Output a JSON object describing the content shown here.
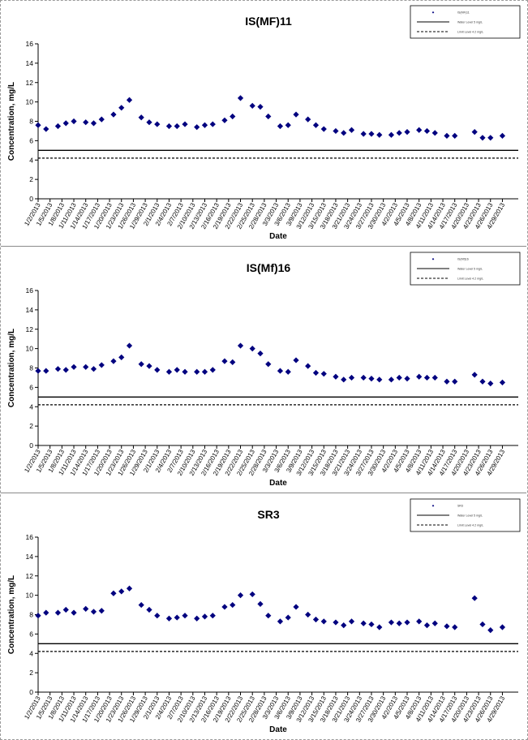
{
  "chart_data": [
    {
      "type": "scatter",
      "title": "IS(MF)11",
      "xlabel": "Date",
      "ylabel": "Concentration, mg/L",
      "ylim": [
        0,
        16
      ],
      "yticks": [
        "0",
        "2",
        "4",
        "6",
        "8",
        "10",
        "12",
        "14",
        "16"
      ],
      "grid": false,
      "legend_placement": "top-right",
      "xtick_labels": [
        "1/2/2013",
        "1/5/2013",
        "1/8/2013",
        "1/11/2013",
        "1/14/2013",
        "1/17/2013",
        "1/20/2013",
        "1/23/2013",
        "1/26/2013",
        "1/29/2013",
        "2/1/2013",
        "2/4/2013",
        "2/7/2013",
        "2/10/2013",
        "2/13/2013",
        "2/16/2013",
        "2/19/2013",
        "2/22/2013",
        "2/25/2013",
        "2/28/2013",
        "3/3/2013",
        "3/6/2013",
        "3/9/2013",
        "3/12/2013",
        "3/15/2013",
        "3/18/2013",
        "3/21/2013",
        "3/24/2013",
        "3/27/2013",
        "3/30/2013",
        "4/2/2013",
        "4/5/2013",
        "4/8/2013",
        "4/11/2013",
        "4/14/2013",
        "4/17/2013",
        "4/20/2013",
        "4/23/2013",
        "4/26/2013",
        "4/29/2013"
      ],
      "series": [
        {
          "name": "IS(MF)11",
          "marker": "diamond",
          "color": "#00007f",
          "x": [
            "1/2/2013",
            "1/4/2013",
            "1/7/2013",
            "1/9/2013",
            "1/11/2013",
            "1/14/2013",
            "1/16/2013",
            "1/18/2013",
            "1/21/2013",
            "1/23/2013",
            "1/25/2013",
            "1/28/2013",
            "1/30/2013",
            "2/1/2013",
            "2/4/2013",
            "2/6/2013",
            "2/8/2013",
            "2/11/2013",
            "2/13/2013",
            "2/15/2013",
            "2/18/2013",
            "2/20/2013",
            "2/22/2013",
            "2/25/2013",
            "2/27/2013",
            "3/1/2013",
            "3/4/2013",
            "3/6/2013",
            "3/8/2013",
            "3/11/2013",
            "3/13/2013",
            "3/15/2013",
            "3/18/2013",
            "3/20/2013",
            "3/22/2013",
            "3/25/2013",
            "3/27/2013",
            "3/29/2013",
            "4/1/2013",
            "4/3/2013",
            "4/5/2013",
            "4/8/2013",
            "4/10/2013",
            "4/12/2013",
            "4/15/2013",
            "4/17/2013",
            "4/22/2013",
            "4/24/2013",
            "4/26/2013",
            "4/29/2013"
          ],
          "y": [
            7.6,
            7.2,
            7.5,
            7.8,
            8.0,
            7.9,
            7.8,
            8.2,
            8.7,
            9.4,
            10.2,
            8.4,
            7.9,
            7.7,
            7.5,
            7.5,
            7.7,
            7.4,
            7.6,
            7.7,
            8.1,
            8.5,
            10.4,
            9.6,
            9.5,
            8.5,
            7.5,
            7.6,
            8.7,
            8.2,
            7.6,
            7.2,
            7.0,
            6.8,
            7.1,
            6.7,
            6.7,
            6.6,
            6.6,
            6.8,
            6.9,
            7.1,
            7.0,
            6.8,
            6.5,
            6.5,
            6.9,
            6.3,
            6.3,
            6.5
          ]
        },
        {
          "name": "",
          "kind": "hline",
          "style": "solid",
          "color": "#000000",
          "y": 5.0
        },
        {
          "name": "",
          "kind": "hline",
          "style": "dashed",
          "color": "#000000",
          "y": 4.2
        }
      ]
    },
    {
      "type": "scatter",
      "title": "IS(Mf)16",
      "xlabel": "Date",
      "ylabel": "Concentration, mg/L",
      "ylim": [
        0,
        16
      ],
      "yticks": [
        "0",
        "2",
        "4",
        "6",
        "8",
        "10",
        "12",
        "14",
        "16"
      ],
      "grid": false,
      "legend_placement": "top-right",
      "xtick_labels": [
        "1/2/2013",
        "1/5/2013",
        "1/8/2013",
        "1/11/2013",
        "1/14/2013",
        "1/17/2013",
        "1/20/2013",
        "1/23/2013",
        "1/26/2013",
        "1/29/2013",
        "2/1/2013",
        "2/4/2013",
        "2/7/2013",
        "2/10/2013",
        "2/13/2013",
        "2/16/2013",
        "2/19/2013",
        "2/22/2013",
        "2/25/2013",
        "2/28/2013",
        "3/3/2013",
        "3/6/2013",
        "3/9/2013",
        "3/12/2013",
        "3/15/2013",
        "3/18/2013",
        "3/21/2013",
        "3/24/2013",
        "3/27/2013",
        "3/30/2013",
        "4/2/2013",
        "4/5/2013",
        "4/8/2013",
        "4/11/2013",
        "4/14/2013",
        "4/17/2013",
        "4/20/2013",
        "4/23/2013",
        "4/26/2013",
        "4/29/2013"
      ],
      "series": [
        {
          "name": "IS(Mf)16",
          "marker": "diamond",
          "color": "#00007f",
          "x": [
            "1/2/2013",
            "1/4/2013",
            "1/7/2013",
            "1/9/2013",
            "1/11/2013",
            "1/14/2013",
            "1/16/2013",
            "1/18/2013",
            "1/21/2013",
            "1/23/2013",
            "1/25/2013",
            "1/28/2013",
            "1/30/2013",
            "2/1/2013",
            "2/4/2013",
            "2/6/2013",
            "2/8/2013",
            "2/11/2013",
            "2/13/2013",
            "2/15/2013",
            "2/18/2013",
            "2/20/2013",
            "2/22/2013",
            "2/25/2013",
            "2/27/2013",
            "3/1/2013",
            "3/4/2013",
            "3/6/2013",
            "3/8/2013",
            "3/11/2013",
            "3/13/2013",
            "3/15/2013",
            "3/18/2013",
            "3/20/2013",
            "3/22/2013",
            "3/25/2013",
            "3/27/2013",
            "3/29/2013",
            "4/1/2013",
            "4/3/2013",
            "4/5/2013",
            "4/8/2013",
            "4/10/2013",
            "4/12/2013",
            "4/15/2013",
            "4/17/2013",
            "4/22/2013",
            "4/24/2013",
            "4/26/2013",
            "4/29/2013"
          ],
          "y": [
            7.7,
            7.7,
            7.9,
            7.8,
            8.1,
            8.1,
            7.9,
            8.3,
            8.7,
            9.1,
            10.3,
            8.4,
            8.2,
            7.8,
            7.6,
            7.8,
            7.6,
            7.6,
            7.6,
            7.8,
            8.7,
            8.6,
            10.3,
            10.0,
            9.5,
            8.4,
            7.7,
            7.6,
            8.8,
            8.2,
            7.5,
            7.4,
            7.1,
            6.8,
            7.0,
            7.0,
            6.9,
            6.8,
            6.8,
            7.0,
            6.9,
            7.1,
            7.0,
            7.0,
            6.6,
            6.6,
            7.3,
            6.6,
            6.4,
            6.5
          ]
        },
        {
          "name": "",
          "kind": "hline",
          "style": "solid",
          "color": "#000000",
          "y": 5.0
        },
        {
          "name": "",
          "kind": "hline",
          "style": "dashed",
          "color": "#000000",
          "y": 4.2
        }
      ]
    },
    {
      "type": "scatter",
      "title": "SR3",
      "xlabel": "Date",
      "ylabel": "Concentration, mg/L",
      "ylim": [
        0,
        16
      ],
      "yticks": [
        "0",
        "2",
        "4",
        "6",
        "8",
        "10",
        "12",
        "14",
        "16"
      ],
      "grid": false,
      "legend_placement": "top-right",
      "xtick_labels": [
        "1/2/2013",
        "1/5/2013",
        "1/8/2013",
        "1/11/2013",
        "1/14/2013",
        "1/17/2013",
        "1/20/2013",
        "1/23/2013",
        "1/26/2013",
        "1/29/2013",
        "2/1/2013",
        "2/4/2013",
        "2/7/2013",
        "2/10/2013",
        "2/13/2013",
        "2/16/2013",
        "2/19/2013",
        "2/22/2013",
        "2/25/2013",
        "2/28/2013",
        "3/3/2013",
        "3/6/2013",
        "3/9/2013",
        "3/12/2013",
        "3/15/2013",
        "3/18/2013",
        "3/21/2013",
        "3/24/2013",
        "3/27/2013",
        "3/30/2013",
        "4/2/2013",
        "4/5/2013",
        "4/8/2013",
        "4/11/2013",
        "4/14/2013",
        "4/17/2013",
        "4/20/2013",
        "4/23/2013",
        "4/26/2013",
        "4/29/2013"
      ],
      "series": [
        {
          "name": "SR3",
          "marker": "diamond",
          "color": "#00007f",
          "x": [
            "1/2/2013",
            "1/4/2013",
            "1/7/2013",
            "1/9/2013",
            "1/11/2013",
            "1/14/2013",
            "1/16/2013",
            "1/18/2013",
            "1/21/2013",
            "1/23/2013",
            "1/25/2013",
            "1/28/2013",
            "1/30/2013",
            "2/1/2013",
            "2/4/2013",
            "2/6/2013",
            "2/8/2013",
            "2/11/2013",
            "2/13/2013",
            "2/15/2013",
            "2/18/2013",
            "2/20/2013",
            "2/22/2013",
            "2/25/2013",
            "2/27/2013",
            "3/1/2013",
            "3/4/2013",
            "3/6/2013",
            "3/8/2013",
            "3/11/2013",
            "3/13/2013",
            "3/15/2013",
            "3/18/2013",
            "3/20/2013",
            "3/22/2013",
            "3/25/2013",
            "3/27/2013",
            "3/29/2013",
            "4/1/2013",
            "4/3/2013",
            "4/5/2013",
            "4/8/2013",
            "4/10/2013",
            "4/12/2013",
            "4/15/2013",
            "4/17/2013",
            "4/22/2013",
            "4/24/2013",
            "4/26/2013",
            "4/29/2013"
          ],
          "y": [
            7.9,
            8.2,
            8.2,
            8.5,
            8.2,
            8.6,
            8.3,
            8.4,
            10.2,
            10.4,
            10.7,
            9.0,
            8.5,
            7.9,
            7.6,
            7.7,
            7.9,
            7.6,
            7.8,
            7.9,
            8.8,
            9.0,
            10.0,
            10.1,
            9.1,
            7.9,
            7.3,
            7.7,
            8.8,
            8.0,
            7.5,
            7.3,
            7.2,
            6.9,
            7.3,
            7.1,
            7.0,
            6.7,
            7.2,
            7.1,
            7.2,
            7.3,
            6.9,
            7.1,
            6.8,
            6.7,
            9.7,
            7.0,
            6.4,
            6.7
          ]
        },
        {
          "name": "",
          "kind": "hline",
          "style": "solid",
          "color": "#000000",
          "y": 5.0
        },
        {
          "name": "",
          "kind": "hline",
          "style": "dashed",
          "color": "#000000",
          "y": 4.2
        }
      ]
    }
  ],
  "legends": [
    [
      "IS(MF)11",
      "Water Level 5 mg/L",
      "Limit Level 4.2 mg/L"
    ],
    [
      "IS(Mf)16",
      "Water Level 5 mg/L",
      "Limit Level 4.2 mg/L"
    ],
    [
      "SR3",
      "Water Level 5 mg/L",
      "Limit Level 4.2 mg/L"
    ]
  ],
  "colors": {
    "marker": "#00007f",
    "line": "#000000",
    "frame": "#9a9a9a"
  }
}
